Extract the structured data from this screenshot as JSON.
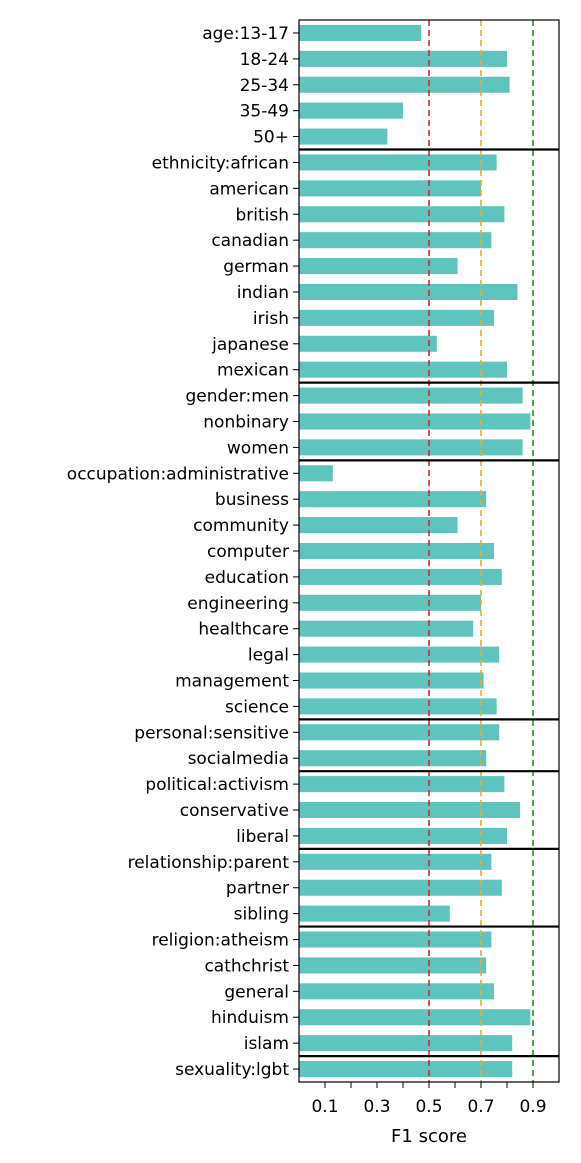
{
  "chart_data": {
    "type": "bar",
    "orientation": "horizontal",
    "xlabel": "F1 score",
    "ylabel": "",
    "title": "",
    "xlim": [
      0,
      1
    ],
    "x_ticks": [
      0.1,
      0.3,
      0.5,
      0.7,
      0.9
    ],
    "x_tick_labels": [
      "0.1",
      "0.3",
      "0.5",
      "0.7",
      "0.9"
    ],
    "bar_color": "#5fc4bd",
    "reference_lines": [
      {
        "value": 0.5,
        "color": "#d62728",
        "style": "dashed"
      },
      {
        "value": 0.7,
        "color": "#f5a623",
        "style": "dashed"
      },
      {
        "value": 0.9,
        "color": "#2e8b2e",
        "style": "dashed"
      }
    ],
    "grid": false,
    "categories": [
      "age:13-17",
      "18-24",
      "25-34",
      "35-49",
      "50+",
      "ethnicity:african",
      "american",
      "british",
      "canadian",
      "german",
      "indian",
      "irish",
      "japanese",
      "mexican",
      "gender:men",
      "nonbinary",
      "women",
      "occupation:administrative",
      "business",
      "community",
      "computer",
      "education",
      "engineering",
      "healthcare",
      "legal",
      "management",
      "science",
      "personal:sensitive",
      "socialmedia",
      "political:activism",
      "conservative",
      "liberal",
      "relationship:parent",
      "partner",
      "sibling",
      "religion:atheism",
      "cathchrist",
      "general",
      "hinduism",
      "islam",
      "sexuality:lgbt"
    ],
    "values": [
      0.47,
      0.8,
      0.81,
      0.4,
      0.34,
      0.76,
      0.7,
      0.79,
      0.74,
      0.61,
      0.84,
      0.75,
      0.53,
      0.8,
      0.86,
      0.89,
      0.86,
      0.13,
      0.72,
      0.61,
      0.75,
      0.78,
      0.7,
      0.67,
      0.77,
      0.71,
      0.76,
      0.77,
      0.72,
      0.79,
      0.85,
      0.8,
      0.74,
      0.78,
      0.58,
      0.74,
      0.72,
      0.75,
      0.89,
      0.82,
      0.82
    ],
    "group_separators_after": [
      4,
      13,
      16,
      26,
      28,
      31,
      34,
      39
    ]
  }
}
